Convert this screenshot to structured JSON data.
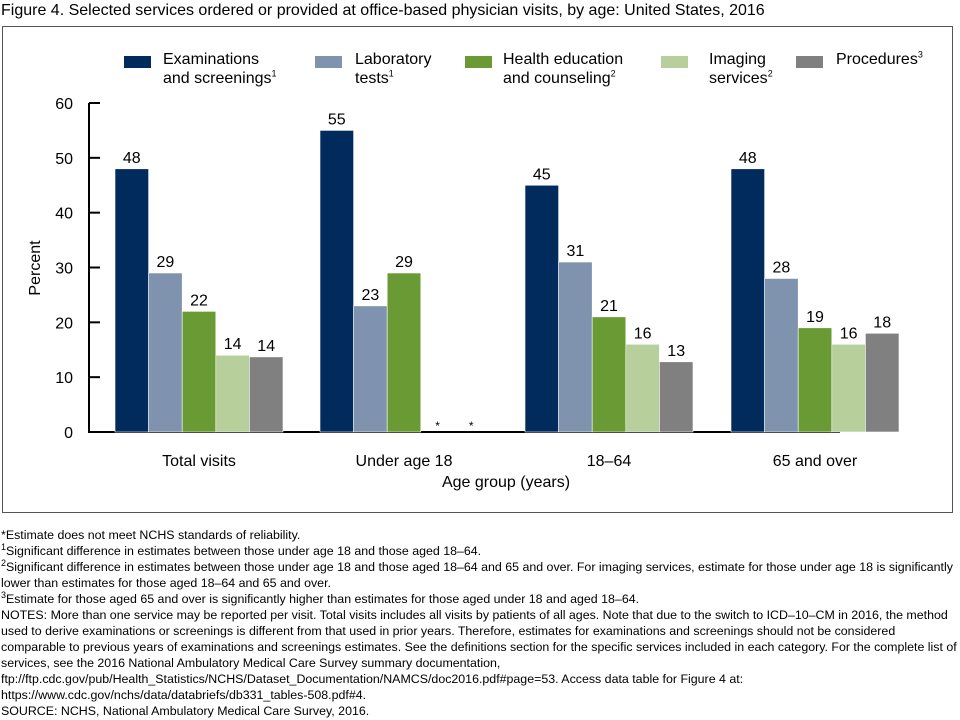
{
  "title": "Figure 4. Selected services ordered or provided at office-based physician visits, by age: United States, 2016",
  "chart_data": {
    "type": "bar",
    "title": "Figure 4. Selected services ordered or provided at office-based physician visits, by age: United States, 2016",
    "xlabel": "Age group (years)",
    "ylabel": "Percent",
    "ylim": [
      0,
      60
    ],
    "yticks": [
      0,
      10,
      20,
      30,
      40,
      50,
      60
    ],
    "grid": false,
    "legend_position": "top",
    "categories": [
      "Total visits",
      "Under age 18",
      "18–64",
      "65 and over"
    ],
    "series": [
      {
        "name": "Examinations and screenings",
        "legend_lines": [
          "Examinations",
          "and screenings"
        ],
        "footnote": "1",
        "color": "#002b5c",
        "values": [
          48,
          55,
          45,
          48
        ],
        "labels": [
          "48",
          "55",
          "45",
          "48"
        ]
      },
      {
        "name": "Laboratory tests",
        "legend_lines": [
          "Laboratory",
          "tests"
        ],
        "footnote": "1",
        "color": "#7f93ae",
        "values": [
          29,
          23,
          31,
          28
        ],
        "labels": [
          "29",
          "23",
          "31",
          "28"
        ]
      },
      {
        "name": "Health education and counseling",
        "legend_lines": [
          "Health education",
          "and counseling"
        ],
        "footnote": "2",
        "color": "#6a9a33",
        "values": [
          22,
          29,
          21,
          19
        ],
        "labels": [
          "22",
          "29",
          "21",
          "19"
        ]
      },
      {
        "name": "Imaging services",
        "legend_lines": [
          "Imaging",
          "services"
        ],
        "footnote": "2",
        "color": "#b7cf9b",
        "values": [
          14,
          null,
          16,
          16
        ],
        "labels": [
          "14",
          "*",
          "16",
          "16"
        ]
      },
      {
        "name": "Procedures",
        "legend_lines": [
          "Procedures"
        ],
        "footnote": "3",
        "color": "#808080",
        "values": [
          13.7,
          null,
          12.8,
          18
        ],
        "labels": [
          "14",
          "*",
          "13",
          "18"
        ]
      }
    ]
  },
  "notes": {
    "asterisk": "*Estimate does not meet NCHS standards of reliability.",
    "fn1_mark": "1",
    "fn1": "Significant difference in estimates between those under age 18 and those aged 18–64.",
    "fn2_mark": "2",
    "fn2": "Significant difference in estimates between those under age 18 and those aged 18–64 and 65 and over. For imaging services, estimate for those under age 18 is significantly lower than estimates for those aged 18–64 and 65 and over.",
    "fn3_mark": "3",
    "fn3": "Estimate for those aged 65 and over is significantly higher than estimates for those aged under 18 and aged 18–64.",
    "notes_text": "NOTES: More than one service may be reported per visit. Total visits includes all visits by patients of all ages. Note that due to the switch to ICD–10–CM in 2016, the method used to derive examinations or screenings is different from that used in prior years. Therefore, estimates for examinations and screenings should not be considered comparable to previous years of examinations and screenings estimates. See the definitions section for the specific services included in each category. For the complete list of services, see the 2016 National Ambulatory Medical Care Survey summary documentation, ftp://ftp.cdc.gov/pub/Health_Statistics/NCHS/Dataset_Documentation/NAMCS/doc2016.pdf#page=53. Access data table for Figure 4 at: https://www.cdc.gov/nchs/data/databriefs/db331_tables-508.pdf#4.",
    "source": "SOURCE: NCHS, National Ambulatory Medical Care Survey, 2016."
  }
}
